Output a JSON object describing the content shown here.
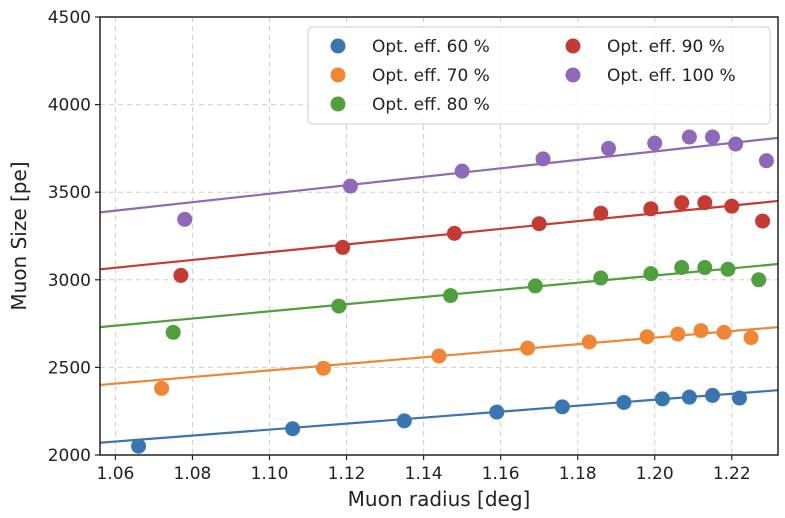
{
  "chart_data": {
    "type": "scatter",
    "title": "",
    "xlabel": "Muon radius [deg]",
    "ylabel": "Muon Size [pe]",
    "xlim": [
      1.056,
      1.232
    ],
    "ylim": [
      2000,
      4500
    ],
    "xticks": [
      1.06,
      1.08,
      1.1,
      1.12,
      1.14,
      1.16,
      1.18,
      1.2,
      1.22
    ],
    "xtick_labels": [
      "1.06",
      "1.08",
      "1.10",
      "1.12",
      "1.14",
      "1.16",
      "1.18",
      "1.20",
      "1.22"
    ],
    "yticks": [
      2000,
      2500,
      3000,
      3500,
      4000,
      4500
    ],
    "ytick_labels": [
      "2000",
      "2500",
      "3000",
      "3500",
      "4000",
      "4500"
    ],
    "grid": true,
    "legend_position": "top-right",
    "series": [
      {
        "name": "Opt. eff. 60 %",
        "color": "#3b75af",
        "x": [
          1.066,
          1.106,
          1.135,
          1.159,
          1.176,
          1.192,
          1.202,
          1.209,
          1.215,
          1.222
        ],
        "y": [
          2050,
          2150,
          2195,
          2245,
          2275,
          2300,
          2320,
          2330,
          2340,
          2325
        ],
        "fit": [
          [
            1.056,
            2070
          ],
          [
            1.232,
            2370
          ]
        ]
      },
      {
        "name": "Opt. eff. 70 %",
        "color": "#ef8636",
        "x": [
          1.072,
          1.114,
          1.144,
          1.167,
          1.183,
          1.198,
          1.206,
          1.212,
          1.218,
          1.225
        ],
        "y": [
          2380,
          2495,
          2565,
          2610,
          2645,
          2675,
          2690,
          2710,
          2700,
          2670
        ],
        "fit": [
          [
            1.056,
            2400
          ],
          [
            1.232,
            2730
          ]
        ]
      },
      {
        "name": "Opt. eff. 80 %",
        "color": "#519e3e",
        "x": [
          1.075,
          1.118,
          1.147,
          1.169,
          1.186,
          1.199,
          1.207,
          1.213,
          1.219,
          1.227
        ],
        "y": [
          2700,
          2850,
          2910,
          2965,
          3010,
          3035,
          3070,
          3070,
          3060,
          3000
        ],
        "fit": [
          [
            1.056,
            2730
          ],
          [
            1.232,
            3090
          ]
        ]
      },
      {
        "name": "Opt. eff. 90 %",
        "color": "#c53a32",
        "x": [
          1.077,
          1.119,
          1.148,
          1.17,
          1.186,
          1.199,
          1.207,
          1.213,
          1.22,
          1.228
        ],
        "y": [
          3025,
          3185,
          3265,
          3320,
          3380,
          3405,
          3440,
          3440,
          3420,
          3335
        ],
        "fit": [
          [
            1.056,
            3060
          ],
          [
            1.232,
            3450
          ]
        ]
      },
      {
        "name": "Opt. eff. 100 %",
        "color": "#8d69b8",
        "x": [
          1.078,
          1.121,
          1.15,
          1.171,
          1.188,
          1.2,
          1.209,
          1.215,
          1.221,
          1.229
        ],
        "y": [
          3345,
          3535,
          3620,
          3690,
          3750,
          3780,
          3815,
          3815,
          3775,
          3680
        ],
        "fit": [
          [
            1.056,
            3385
          ],
          [
            1.232,
            3810
          ]
        ]
      }
    ]
  }
}
